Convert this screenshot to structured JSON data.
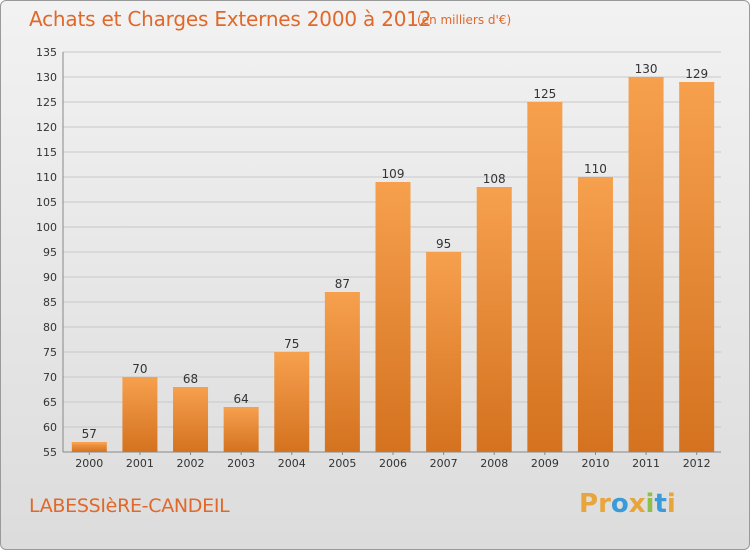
{
  "header": {
    "title": "Achats et Charges Externes 2000 à 2012",
    "subtitle": "(en milliers d'€)"
  },
  "footer": {
    "town": "LABESSIèRE-CANDEIL",
    "logo_text": "Proxiti",
    "logo_colors": [
      "#e8a53c",
      "#e8a53c",
      "#3b9ad8",
      "#e8a53c",
      "#8cc04a",
      "#3b9ad8",
      "#e8a53c"
    ]
  },
  "colors": {
    "accent": "#e0682a",
    "bar_top": "#f6a04e",
    "bar_bottom": "#d4721f",
    "grid": "#c8c8c8",
    "axis_text": "#333333"
  },
  "chart_data": {
    "type": "bar",
    "categories": [
      "2000",
      "2001",
      "2002",
      "2003",
      "2004",
      "2005",
      "2006",
      "2007",
      "2008",
      "2009",
      "2010",
      "2011",
      "2012"
    ],
    "values": [
      57,
      70,
      68,
      64,
      75,
      87,
      109,
      95,
      108,
      125,
      110,
      130,
      129
    ],
    "ylim": [
      55,
      135
    ],
    "yticks": [
      55,
      60,
      65,
      70,
      75,
      80,
      85,
      90,
      95,
      100,
      105,
      110,
      115,
      120,
      125,
      130,
      135
    ],
    "grid": true,
    "data_labels": true,
    "title": "Achats et Charges Externes 2000 à 2012",
    "xlabel": "",
    "ylabel": ""
  }
}
